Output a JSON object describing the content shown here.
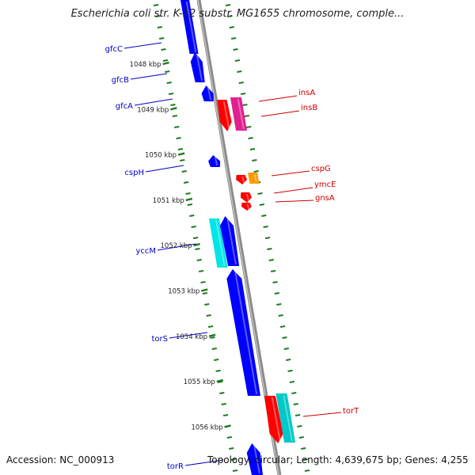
{
  "title": "Escherichia coli str. K-12 substr. MG1655 chromosome, comple...",
  "footer": {
    "accession": "Accession: NC_000913",
    "topology": "Topology: circular; Length: 4,639,675 bp; Genes: 4,255"
  },
  "colors": {
    "backbone": "#8c8c8c",
    "tick_dots": "#1f7a1f",
    "blue_gene": "#0000ff",
    "cyan_gene": "#00e5e5",
    "teal_gene": "#00c8c8",
    "red_gene": "#ff0000",
    "magenta_gene": "#e0208f",
    "orange_gene": "#ff9900",
    "blue_label": "#0000cc",
    "red_label": "#cc0000"
  },
  "scale": {
    "unit": "kbp",
    "ticks": [
      "1048 kbp",
      "1049 kbp",
      "1050 kbp",
      "1051 kbp",
      "1052 kbp",
      "1053 kbp",
      "1054 kbp",
      "1055 kbp",
      "1056 kbp"
    ]
  },
  "genes": {
    "left": [
      "gfcC",
      "gfcB",
      "gfcA",
      "cspH",
      "yccM",
      "torS",
      "torR"
    ],
    "right": [
      "insA",
      "insB",
      "cspG",
      "ymcE",
      "gnsA",
      "torT"
    ]
  }
}
